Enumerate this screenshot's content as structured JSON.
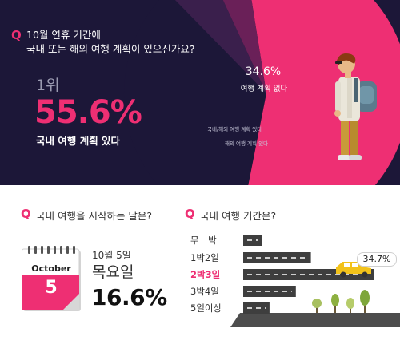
{
  "top": {
    "q_mark": "Q",
    "question_line1": "10월 연휴 기간에",
    "question_line2": "국내 또는 해외 여행 계획이 있으신가요?",
    "rank": "1위",
    "main_pct": "55.6%",
    "main_label": "국내 여행 계획 있다"
  },
  "date_section": {
    "q_mark": "Q",
    "title": "국내 여행을 시작하는 날은?",
    "calendar_month": "October",
    "calendar_day": "5",
    "date": "10월 5일",
    "weekday": "목요일",
    "pct": "16.6%"
  },
  "duration_section": {
    "q_mark": "Q",
    "title": "국내 여행 기간은?",
    "badge": "34.7%"
  },
  "colors": {
    "accent": "#ee2f73",
    "dark_bg": "#1c1738",
    "road": "#3e3e3e"
  },
  "icons": {
    "calendar": "calendar-icon",
    "car": "car-icon",
    "person": "traveler-icon",
    "trees": "tree-icon"
  },
  "chart_data": [
    {
      "type": "pie",
      "slices": [
        {
          "label": "국내 여행 계획 있다",
          "value": 55.6,
          "color": "#ee2f73"
        },
        {
          "label": "여행 계획 없다",
          "value": 34.6,
          "color": "#1c1738"
        },
        {
          "label": "국내/해외 여행 계획 있다",
          "value": null,
          "color": "#3a1f4c"
        },
        {
          "label": "해외 여행 계획 있다",
          "value": null,
          "color": "#6a2058"
        }
      ],
      "labels": {
        "no_plan_pct": "34.6%",
        "no_plan": "여행 계획 없다",
        "both": "국내/해외 여행 계획 있다",
        "abroad": "해외 여행 계획 있다"
      }
    },
    {
      "type": "bar",
      "categories": [
        "무　박",
        "1박2일",
        "2박3일",
        "3박4일",
        "5일이상"
      ],
      "values": [
        5,
        18,
        34.7,
        14,
        7
      ],
      "highlight": "2박3일",
      "data_labels": {
        "2박3일": "34.7%"
      }
    }
  ]
}
